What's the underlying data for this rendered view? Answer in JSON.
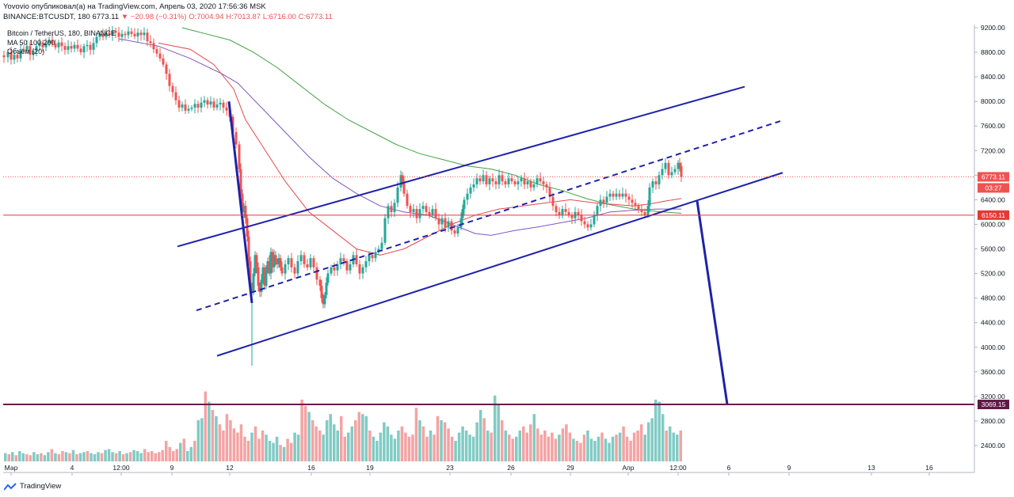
{
  "header": {
    "published_line": "Yovovio опубликовал(а) на TradingView.com, Апрель 03, 2020 17:56:36 MSK",
    "symbol_prefix": "BINANCE:BTCUSDT, 180",
    "last": "6773.11",
    "change": "▼ −20.98 (−0.31%)",
    "ohlc": "O:7004.94 H:7013.87 L:6716.00 C:6773.11"
  },
  "legend": {
    "symbol": "Bitcoin / TetherUS, 180, BINANCE",
    "ma": "MA 50 100 200",
    "volume": "Объём (20)"
  },
  "footer": {
    "brand": "TradingView"
  },
  "colors": {
    "up": "#26a69a",
    "down": "#ef5350",
    "channel": "#1e22aa",
    "ma50": "#e5484d",
    "ma100": "#7e57c2",
    "ma200": "#43a047",
    "support_line": "#e53935",
    "target_line": "#6a1b4d"
  },
  "chart_data": {
    "type": "candlestick",
    "y_axis": {
      "min": 2200,
      "max": 9200,
      "ticks": [
        9200,
        8800,
        8400,
        8000,
        7600,
        7200,
        6800,
        6400,
        6000,
        5600,
        5200,
        4800,
        4400,
        4000,
        3600,
        3200,
        2800,
        2400
      ]
    },
    "x_axis": {
      "tick_labels": [
        "Мар",
        "4",
        "12:00",
        "9",
        "12",
        "16",
        "19",
        "23",
        "26",
        "29",
        "Апр",
        "12:00",
        "6",
        "9",
        "13",
        "16"
      ]
    },
    "price_labels": [
      {
        "name": "last_price",
        "value": 6773.11,
        "text": "6773.11",
        "countdown": "03:27"
      },
      {
        "name": "support",
        "value": 6150.11,
        "text": "6150.11"
      },
      {
        "name": "target",
        "value": 3069.15,
        "text": "3069.15"
      }
    ],
    "price_path": [
      [
        0,
        8750
      ],
      [
        5,
        8720
      ],
      [
        10,
        8800
      ],
      [
        14,
        8680
      ],
      [
        18,
        8760
      ],
      [
        22,
        8700
      ],
      [
        26,
        8850
      ],
      [
        30,
        8830
      ],
      [
        34,
        8900
      ],
      [
        38,
        8760
      ],
      [
        42,
        8820
      ],
      [
        46,
        8900
      ],
      [
        50,
        8960
      ],
      [
        54,
        8880
      ],
      [
        58,
        8950
      ],
      [
        62,
        9000
      ],
      [
        66,
        8940
      ],
      [
        70,
        8880
      ],
      [
        74,
        8960
      ],
      [
        78,
        8900
      ],
      [
        82,
        8840
      ],
      [
        86,
        8900
      ],
      [
        90,
        8860
      ],
      [
        94,
        8920
      ],
      [
        98,
        8860
      ],
      [
        102,
        8800
      ],
      [
        106,
        8900
      ],
      [
        110,
        8920
      ],
      [
        114,
        8840
      ],
      [
        118,
        8950
      ],
      [
        122,
        9050
      ],
      [
        126,
        9100
      ],
      [
        130,
        9050
      ],
      [
        134,
        9120
      ],
      [
        138,
        9080
      ],
      [
        142,
        9150
      ],
      [
        146,
        9120
      ],
      [
        150,
        9050
      ],
      [
        154,
        9100
      ],
      [
        158,
        9080
      ],
      [
        162,
        9140
      ],
      [
        166,
        9100
      ],
      [
        170,
        9060
      ],
      [
        174,
        9120
      ],
      [
        178,
        9080
      ],
      [
        182,
        9120
      ],
      [
        186,
        8980
      ],
      [
        190,
        8950
      ],
      [
        194,
        8850
      ],
      [
        198,
        8780
      ],
      [
        202,
        8700
      ],
      [
        206,
        8600
      ],
      [
        210,
        8450
      ],
      [
        214,
        8250
      ],
      [
        218,
        8150
      ],
      [
        222,
        8020
      ],
      [
        226,
        7900
      ],
      [
        230,
        7950
      ],
      [
        234,
        7850
      ],
      [
        238,
        7880
      ],
      [
        242,
        7900
      ],
      [
        246,
        7960
      ],
      [
        250,
        7900
      ],
      [
        254,
        7980
      ],
      [
        258,
        8020
      ],
      [
        262,
        7950
      ],
      [
        266,
        8000
      ],
      [
        270,
        7900
      ],
      [
        274,
        7950
      ],
      [
        278,
        7980
      ],
      [
        282,
        7900
      ],
      [
        286,
        7850
      ],
      [
        290,
        7750
      ],
      [
        294,
        7500
      ],
      [
        298,
        7300
      ],
      [
        302,
        6900
      ],
      [
        304,
        6500
      ],
      [
        306,
        6200
      ],
      [
        308,
        6300
      ],
      [
        310,
        6100
      ],
      [
        312,
        5800
      ],
      [
        314,
        5400
      ],
      [
        316,
        5000
      ],
      [
        318,
        4900
      ],
      [
        320,
        5200
      ],
      [
        322,
        5500
      ],
      [
        324,
        5300
      ],
      [
        326,
        5000
      ],
      [
        328,
        4900
      ],
      [
        330,
        5100
      ],
      [
        332,
        5300
      ],
      [
        334,
        5000
      ],
      [
        336,
        5250
      ],
      [
        338,
        5400
      ],
      [
        340,
        5200
      ],
      [
        342,
        5550
      ],
      [
        344,
        5300
      ],
      [
        346,
        5500
      ],
      [
        348,
        5400
      ],
      [
        350,
        5350
      ],
      [
        352,
        5450
      ],
      [
        354,
        5300
      ],
      [
        356,
        5200
      ],
      [
        360,
        5350
      ],
      [
        364,
        5450
      ],
      [
        368,
        5300
      ],
      [
        372,
        5200
      ],
      [
        376,
        5400
      ],
      [
        380,
        5500
      ],
      [
        384,
        5350
      ],
      [
        388,
        5300
      ],
      [
        392,
        5450
      ],
      [
        396,
        5300
      ],
      [
        400,
        5100
      ],
      [
        404,
        5000
      ],
      [
        406,
        4800
      ],
      [
        408,
        4700
      ],
      [
        410,
        4850
      ],
      [
        412,
        5050
      ],
      [
        414,
        5200
      ],
      [
        418,
        5300
      ],
      [
        422,
        5250
      ],
      [
        426,
        5350
      ],
      [
        430,
        5450
      ],
      [
        434,
        5400
      ],
      [
        438,
        5250
      ],
      [
        442,
        5350
      ],
      [
        446,
        5500
      ],
      [
        450,
        5350
      ],
      [
        454,
        5200
      ],
      [
        458,
        5300
      ],
      [
        462,
        5400
      ],
      [
        466,
        5500
      ],
      [
        470,
        5450
      ],
      [
        474,
        5550
      ],
      [
        478,
        5600
      ],
      [
        482,
        5700
      ],
      [
        486,
        6100
      ],
      [
        490,
        6300
      ],
      [
        494,
        6200
      ],
      [
        498,
        6350
      ],
      [
        502,
        6600
      ],
      [
        506,
        6800
      ],
      [
        508,
        6700
      ],
      [
        510,
        6500
      ],
      [
        514,
        6300
      ],
      [
        518,
        6200
      ],
      [
        522,
        6250
      ],
      [
        526,
        6100
      ],
      [
        530,
        6250
      ],
      [
        534,
        6300
      ],
      [
        538,
        6200
      ],
      [
        542,
        6150
      ],
      [
        546,
        6250
      ],
      [
        550,
        6100
      ],
      [
        554,
        6000
      ],
      [
        558,
        6100
      ],
      [
        562,
        5950
      ],
      [
        566,
        6050
      ],
      [
        570,
        5900
      ],
      [
        574,
        5850
      ],
      [
        578,
        5950
      ],
      [
        582,
        6100
      ],
      [
        584,
        6250
      ],
      [
        586,
        6400
      ],
      [
        590,
        6500
      ],
      [
        594,
        6600
      ],
      [
        598,
        6650
      ],
      [
        602,
        6750
      ],
      [
        606,
        6700
      ],
      [
        610,
        6800
      ],
      [
        614,
        6650
      ],
      [
        618,
        6750
      ],
      [
        622,
        6700
      ],
      [
        626,
        6650
      ],
      [
        630,
        6800
      ],
      [
        634,
        6700
      ],
      [
        638,
        6650
      ],
      [
        642,
        6750
      ],
      [
        646,
        6700
      ],
      [
        650,
        6650
      ],
      [
        654,
        6700
      ],
      [
        658,
        6750
      ],
      [
        662,
        6650
      ],
      [
        666,
        6700
      ],
      [
        670,
        6600
      ],
      [
        674,
        6650
      ],
      [
        678,
        6750
      ],
      [
        682,
        6700
      ],
      [
        686,
        6650
      ],
      [
        690,
        6600
      ],
      [
        694,
        6450
      ],
      [
        698,
        6300
      ],
      [
        702,
        6200
      ],
      [
        706,
        6150
      ],
      [
        710,
        6250
      ],
      [
        714,
        6200
      ],
      [
        718,
        6150
      ],
      [
        722,
        6100
      ],
      [
        726,
        6200
      ],
      [
        730,
        6150
      ],
      [
        734,
        6050
      ],
      [
        738,
        6000
      ],
      [
        742,
        5950
      ],
      [
        746,
        6000
      ],
      [
        750,
        6150
      ],
      [
        754,
        6300
      ],
      [
        758,
        6400
      ],
      [
        762,
        6350
      ],
      [
        766,
        6450
      ],
      [
        770,
        6500
      ],
      [
        774,
        6450
      ],
      [
        778,
        6500
      ],
      [
        782,
        6450
      ],
      [
        786,
        6500
      ],
      [
        790,
        6450
      ],
      [
        794,
        6400
      ],
      [
        798,
        6350
      ],
      [
        802,
        6300
      ],
      [
        806,
        6250
      ],
      [
        810,
        6200
      ],
      [
        814,
        6150
      ],
      [
        818,
        6300
      ],
      [
        820,
        6600
      ],
      [
        824,
        6700
      ],
      [
        828,
        6650
      ],
      [
        832,
        6800
      ],
      [
        836,
        6900
      ],
      [
        840,
        7000
      ],
      [
        844,
        6800
      ],
      [
        848,
        6850
      ],
      [
        852,
        6900
      ],
      [
        856,
        7000
      ],
      [
        858,
        6950
      ],
      [
        860,
        6773
      ]
    ],
    "ma50": [
      [
        200,
        8950
      ],
      [
        240,
        8850
      ],
      [
        270,
        8600
      ],
      [
        295,
        8200
      ],
      [
        310,
        7700
      ],
      [
        330,
        7300
      ],
      [
        360,
        6700
      ],
      [
        390,
        6200
      ],
      [
        420,
        5900
      ],
      [
        450,
        5600
      ],
      [
        480,
        5500
      ],
      [
        510,
        5600
      ],
      [
        540,
        5800
      ],
      [
        570,
        6000
      ],
      [
        600,
        6150
      ],
      [
        630,
        6250
      ],
      [
        660,
        6300
      ],
      [
        690,
        6350
      ],
      [
        720,
        6400
      ],
      [
        750,
        6350
      ],
      [
        780,
        6320
      ],
      [
        800,
        6300
      ],
      [
        820,
        6330
      ],
      [
        840,
        6380
      ],
      [
        860,
        6420
      ]
    ],
    "ma100": [
      [
        150,
        9020
      ],
      [
        200,
        8900
      ],
      [
        240,
        8700
      ],
      [
        280,
        8450
      ],
      [
        300,
        8300
      ],
      [
        330,
        7900
      ],
      [
        360,
        7500
      ],
      [
        390,
        7100
      ],
      [
        420,
        6750
      ],
      [
        450,
        6500
      ],
      [
        480,
        6300
      ],
      [
        510,
        6200
      ],
      [
        540,
        6150
      ],
      [
        570,
        6000
      ],
      [
        600,
        5850
      ],
      [
        620,
        5820
      ],
      [
        650,
        5900
      ],
      [
        680,
        5960
      ],
      [
        710,
        6030
      ],
      [
        740,
        6100
      ],
      [
        770,
        6200
      ],
      [
        800,
        6230
      ],
      [
        830,
        6250
      ],
      [
        860,
        6250
      ]
    ],
    "ma200": [
      [
        230,
        9200
      ],
      [
        260,
        9100
      ],
      [
        290,
        9000
      ],
      [
        320,
        8800
      ],
      [
        350,
        8550
      ],
      [
        380,
        8250
      ],
      [
        410,
        7950
      ],
      [
        440,
        7700
      ],
      [
        470,
        7500
      ],
      [
        500,
        7300
      ],
      [
        530,
        7150
      ],
      [
        560,
        7050
      ],
      [
        590,
        6950
      ],
      [
        620,
        6900
      ],
      [
        650,
        6800
      ],
      [
        680,
        6650
      ],
      [
        710,
        6550
      ],
      [
        740,
        6420
      ],
      [
        770,
        6320
      ],
      [
        800,
        6250
      ],
      [
        830,
        6210
      ],
      [
        860,
        6180
      ]
    ],
    "channel_upper": {
      "from": [
        224,
        5640
      ],
      "to": [
        940,
        8240
      ]
    },
    "channel_mid_dashed": {
      "from": [
        248,
        4600
      ],
      "to": [
        985,
        7680
      ]
    },
    "channel_lower": {
      "from": [
        274,
        3860
      ],
      "to": [
        988,
        6840
      ]
    },
    "drop_line_left": {
      "from": [
        289,
        8000
      ],
      "to": [
        318,
        4720
      ]
    },
    "projection_line": {
      "from": [
        880,
        6380
      ],
      "to": [
        918,
        3070
      ]
    },
    "volume_bars": [
      8,
      7,
      9,
      6,
      10,
      8,
      7,
      6,
      9,
      7,
      8,
      6,
      9,
      12,
      8,
      7,
      10,
      9,
      8,
      11,
      7,
      8,
      9,
      10,
      8,
      7,
      9,
      8,
      11,
      12,
      9,
      8,
      10,
      7,
      8,
      9,
      11,
      10,
      8,
      12,
      9,
      10,
      8,
      9,
      11,
      20,
      14,
      10,
      12,
      18,
      22,
      10,
      14,
      20,
      40,
      42,
      68,
      58,
      50,
      44,
      36,
      30,
      46,
      40,
      32,
      28,
      36,
      24,
      20,
      28,
      34,
      22,
      30,
      26,
      20,
      18,
      24,
      16,
      14,
      22,
      18,
      28,
      26,
      60,
      54,
      48,
      40,
      34,
      30,
      26,
      40,
      46,
      36,
      30,
      44,
      24,
      28,
      34,
      40,
      48,
      46,
      44,
      30,
      24,
      20,
      28,
      38,
      34,
      26,
      22,
      30,
      34,
      28,
      24,
      26,
      52,
      40,
      34,
      24,
      30,
      26,
      44,
      40,
      38,
      32,
      24,
      20,
      28,
      34,
      30,
      26,
      24,
      38,
      50,
      42,
      30,
      28,
      64,
      56,
      40,
      30,
      26,
      22,
      24,
      30,
      34,
      28,
      36,
      46,
      32,
      26,
      30,
      24,
      28,
      22,
      26,
      32,
      36,
      28,
      22,
      20,
      18,
      26,
      30,
      22,
      20,
      24,
      28,
      22,
      18,
      24,
      26,
      28,
      34,
      24,
      20,
      28,
      30,
      36,
      26,
      38,
      42,
      60,
      58,
      46,
      30,
      34,
      28,
      26,
      30
    ]
  }
}
